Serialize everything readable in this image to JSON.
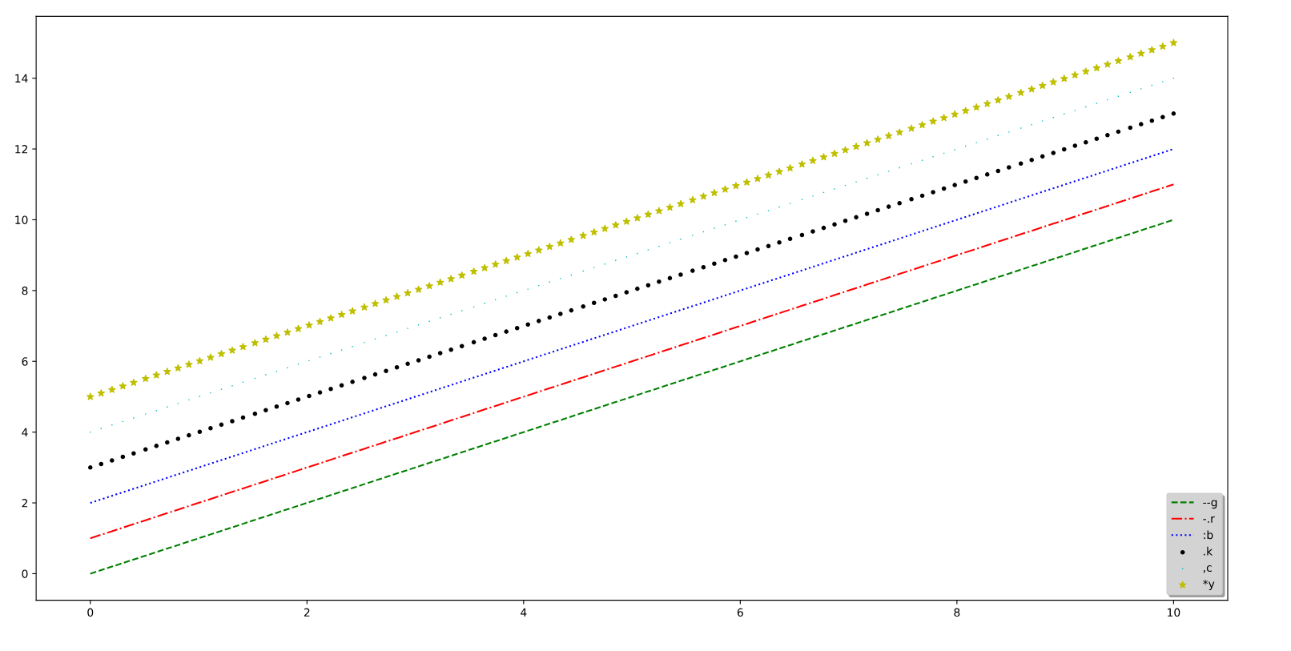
{
  "chart_data": {
    "type": "line",
    "x": [
      0,
      0.1,
      0.2,
      0.3,
      0.4,
      0.51,
      0.61,
      0.71,
      0.81,
      0.91,
      1.01,
      1.11,
      1.21,
      1.31,
      1.41,
      1.52,
      1.62,
      1.72,
      1.82,
      1.92,
      2.02,
      2.12,
      2.22,
      2.32,
      2.42,
      2.53,
      2.63,
      2.73,
      2.83,
      2.93,
      3.03,
      3.13,
      3.23,
      3.33,
      3.43,
      3.54,
      3.64,
      3.74,
      3.84,
      3.94,
      4.04,
      4.14,
      4.24,
      4.34,
      4.44,
      4.55,
      4.65,
      4.75,
      4.85,
      4.95,
      5.05,
      5.15,
      5.25,
      5.35,
      5.45,
      5.56,
      5.66,
      5.76,
      5.86,
      5.96,
      6.06,
      6.16,
      6.26,
      6.36,
      6.46,
      6.57,
      6.67,
      6.77,
      6.87,
      6.97,
      7.07,
      7.17,
      7.27,
      7.37,
      7.47,
      7.58,
      7.68,
      7.78,
      7.88,
      7.98,
      8.08,
      8.18,
      8.28,
      8.38,
      8.48,
      8.59,
      8.69,
      8.79,
      8.89,
      8.99,
      9.09,
      9.19,
      9.29,
      9.39,
      9.49,
      9.6,
      9.7,
      9.8,
      9.9,
      10
    ],
    "series": [
      {
        "name": "--g",
        "color": "#008000",
        "line_style": "dashed",
        "values": [
          0,
          0.1,
          0.2,
          0.3,
          0.4,
          0.51,
          0.61,
          0.71,
          0.81,
          0.91,
          1.01,
          1.11,
          1.21,
          1.31,
          1.41,
          1.52,
          1.62,
          1.72,
          1.82,
          1.92,
          2.02,
          2.12,
          2.22,
          2.32,
          2.42,
          2.53,
          2.63,
          2.73,
          2.83,
          2.93,
          3.03,
          3.13,
          3.23,
          3.33,
          3.43,
          3.54,
          3.64,
          3.74,
          3.84,
          3.94,
          4.04,
          4.14,
          4.24,
          4.34,
          4.44,
          4.55,
          4.65,
          4.75,
          4.85,
          4.95,
          5.05,
          5.15,
          5.25,
          5.35,
          5.45,
          5.56,
          5.66,
          5.76,
          5.86,
          5.96,
          6.06,
          6.16,
          6.26,
          6.36,
          6.46,
          6.57,
          6.67,
          6.77,
          6.87,
          6.97,
          7.07,
          7.17,
          7.27,
          7.37,
          7.47,
          7.58,
          7.68,
          7.78,
          7.88,
          7.98,
          8.08,
          8.18,
          8.28,
          8.38,
          8.48,
          8.59,
          8.69,
          8.79,
          8.89,
          8.99,
          9.09,
          9.19,
          9.29,
          9.39,
          9.49,
          9.6,
          9.7,
          9.8,
          9.9,
          10
        ]
      },
      {
        "name": "-.r",
        "color": "#ff0000",
        "line_style": "dashdot",
        "values": [
          1,
          1.1,
          1.2,
          1.3,
          1.4,
          1.51,
          1.61,
          1.71,
          1.81,
          1.91,
          2.01,
          2.11,
          2.21,
          2.31,
          2.41,
          2.52,
          2.62,
          2.72,
          2.82,
          2.92,
          3.02,
          3.12,
          3.22,
          3.32,
          3.42,
          3.53,
          3.63,
          3.73,
          3.83,
          3.93,
          4.03,
          4.13,
          4.23,
          4.33,
          4.43,
          4.54,
          4.64,
          4.74,
          4.84,
          4.94,
          5.04,
          5.14,
          5.24,
          5.34,
          5.44,
          5.55,
          5.65,
          5.75,
          5.85,
          5.95,
          6.05,
          6.15,
          6.25,
          6.35,
          6.45,
          6.56,
          6.66,
          6.76,
          6.86,
          6.96,
          7.06,
          7.16,
          7.26,
          7.36,
          7.46,
          7.57,
          7.67,
          7.77,
          7.87,
          7.97,
          8.07,
          8.17,
          8.27,
          8.37,
          8.47,
          8.58,
          8.68,
          8.78,
          8.88,
          8.98,
          9.08,
          9.18,
          9.28,
          9.38,
          9.48,
          9.59,
          9.69,
          9.79,
          9.89,
          9.99,
          10.09,
          10.19,
          10.29,
          10.39,
          10.49,
          10.6,
          10.7,
          10.8,
          10.9,
          11
        ]
      },
      {
        "name": ":b",
        "color": "#0000ff",
        "line_style": "dotted",
        "values": [
          2,
          2.1,
          2.2,
          2.3,
          2.4,
          2.51,
          2.61,
          2.71,
          2.81,
          2.91,
          3.01,
          3.11,
          3.21,
          3.31,
          3.41,
          3.52,
          3.62,
          3.72,
          3.82,
          3.92,
          4.02,
          4.12,
          4.22,
          4.32,
          4.42,
          4.53,
          4.63,
          4.73,
          4.83,
          4.93,
          5.03,
          5.13,
          5.23,
          5.33,
          5.43,
          5.54,
          5.64,
          5.74,
          5.84,
          5.94,
          6.04,
          6.14,
          6.24,
          6.34,
          6.44,
          6.55,
          6.65,
          6.75,
          6.85,
          6.95,
          7.05,
          7.15,
          7.25,
          7.35,
          7.45,
          7.56,
          7.66,
          7.76,
          7.86,
          7.96,
          8.06,
          8.16,
          8.26,
          8.36,
          8.46,
          8.57,
          8.67,
          8.77,
          8.87,
          8.97,
          9.07,
          9.17,
          9.27,
          9.37,
          9.47,
          9.58,
          9.68,
          9.78,
          9.88,
          9.98,
          10.08,
          10.18,
          10.28,
          10.38,
          10.48,
          10.59,
          10.69,
          10.79,
          10.89,
          10.99,
          11.09,
          11.19,
          11.29,
          11.39,
          11.49,
          11.6,
          11.7,
          11.8,
          11.9,
          12
        ]
      },
      {
        "name": ".k",
        "type": "scatter",
        "color": "#000000",
        "marker": "circle",
        "values": [
          3,
          3.1,
          3.2,
          3.3,
          3.4,
          3.51,
          3.61,
          3.71,
          3.81,
          3.91,
          4.01,
          4.11,
          4.21,
          4.31,
          4.41,
          4.52,
          4.62,
          4.72,
          4.82,
          4.92,
          5.02,
          5.12,
          5.22,
          5.32,
          5.42,
          5.53,
          5.63,
          5.73,
          5.83,
          5.93,
          6.03,
          6.13,
          6.23,
          6.33,
          6.43,
          6.54,
          6.64,
          6.74,
          6.84,
          6.94,
          7.04,
          7.14,
          7.24,
          7.34,
          7.44,
          7.55,
          7.65,
          7.75,
          7.85,
          7.95,
          8.05,
          8.15,
          8.25,
          8.35,
          8.45,
          8.56,
          8.66,
          8.76,
          8.86,
          8.96,
          9.06,
          9.16,
          9.26,
          9.36,
          9.46,
          9.57,
          9.67,
          9.77,
          9.87,
          9.97,
          10.07,
          10.17,
          10.27,
          10.37,
          10.47,
          10.58,
          10.68,
          10.78,
          10.88,
          10.98,
          11.08,
          11.18,
          11.28,
          11.38,
          11.48,
          11.59,
          11.69,
          11.79,
          11.89,
          11.99,
          12.09,
          12.19,
          12.29,
          12.39,
          12.49,
          12.6,
          12.7,
          12.8,
          12.9,
          13
        ]
      },
      {
        "name": ",c",
        "type": "scatter",
        "color": "#00bfbf",
        "marker": "square",
        "values": [
          4,
          4.1,
          4.2,
          4.3,
          4.4,
          4.51,
          4.61,
          4.71,
          4.81,
          4.91,
          5.01,
          5.11,
          5.21,
          5.31,
          5.41,
          5.52,
          5.62,
          5.72,
          5.82,
          5.92,
          6.02,
          6.12,
          6.22,
          6.32,
          6.42,
          6.53,
          6.63,
          6.73,
          6.83,
          6.93,
          7.03,
          7.13,
          7.23,
          7.33,
          7.43,
          7.54,
          7.64,
          7.74,
          7.84,
          7.94,
          8.04,
          8.14,
          8.24,
          8.34,
          8.44,
          8.55,
          8.65,
          8.75,
          8.85,
          8.95,
          9.05,
          9.15,
          9.25,
          9.35,
          9.45,
          9.56,
          9.66,
          9.76,
          9.86,
          9.96,
          10.06,
          10.16,
          10.26,
          10.36,
          10.46,
          10.57,
          10.67,
          10.77,
          10.87,
          10.97,
          11.07,
          11.17,
          11.27,
          11.37,
          11.47,
          11.58,
          11.68,
          11.78,
          11.88,
          11.98,
          12.08,
          12.18,
          12.28,
          12.38,
          12.48,
          12.59,
          12.69,
          12.79,
          12.89,
          12.99,
          13.09,
          13.19,
          13.29,
          13.39,
          13.49,
          13.6,
          13.7,
          13.8,
          13.9,
          14
        ]
      },
      {
        "name": "*y",
        "type": "scatter",
        "color": "#bfbf00",
        "marker": "star",
        "values": [
          5,
          5.1,
          5.2,
          5.3,
          5.4,
          5.51,
          5.61,
          5.71,
          5.81,
          5.91,
          6.01,
          6.11,
          6.21,
          6.31,
          6.41,
          6.52,
          6.62,
          6.72,
          6.82,
          6.92,
          7.02,
          7.12,
          7.22,
          7.32,
          7.42,
          7.53,
          7.63,
          7.73,
          7.83,
          7.93,
          8.03,
          8.13,
          8.23,
          8.33,
          8.43,
          8.54,
          8.64,
          8.74,
          8.84,
          8.94,
          9.04,
          9.14,
          9.24,
          9.34,
          9.44,
          9.55,
          9.65,
          9.75,
          9.85,
          9.95,
          10.05,
          10.15,
          10.25,
          10.35,
          10.45,
          10.56,
          10.66,
          10.76,
          10.86,
          10.96,
          11.06,
          11.16,
          11.26,
          11.36,
          11.46,
          11.57,
          11.67,
          11.77,
          11.87,
          11.97,
          12.07,
          12.17,
          12.27,
          12.37,
          12.47,
          12.58,
          12.68,
          12.78,
          12.88,
          12.98,
          13.08,
          13.18,
          13.28,
          13.38,
          13.48,
          13.59,
          13.69,
          13.79,
          13.89,
          13.99,
          14.09,
          14.19,
          14.29,
          14.39,
          14.49,
          14.6,
          14.7,
          14.8,
          14.9,
          15
        ]
      }
    ],
    "xlim": [
      -0.5,
      10.5
    ],
    "ylim": [
      -0.75,
      15.75
    ],
    "xticks": [
      0,
      2,
      4,
      6,
      8,
      10
    ],
    "yticks": [
      0,
      2,
      4,
      6,
      8,
      10,
      12,
      14
    ],
    "grid": false,
    "legend": "bottom right"
  }
}
